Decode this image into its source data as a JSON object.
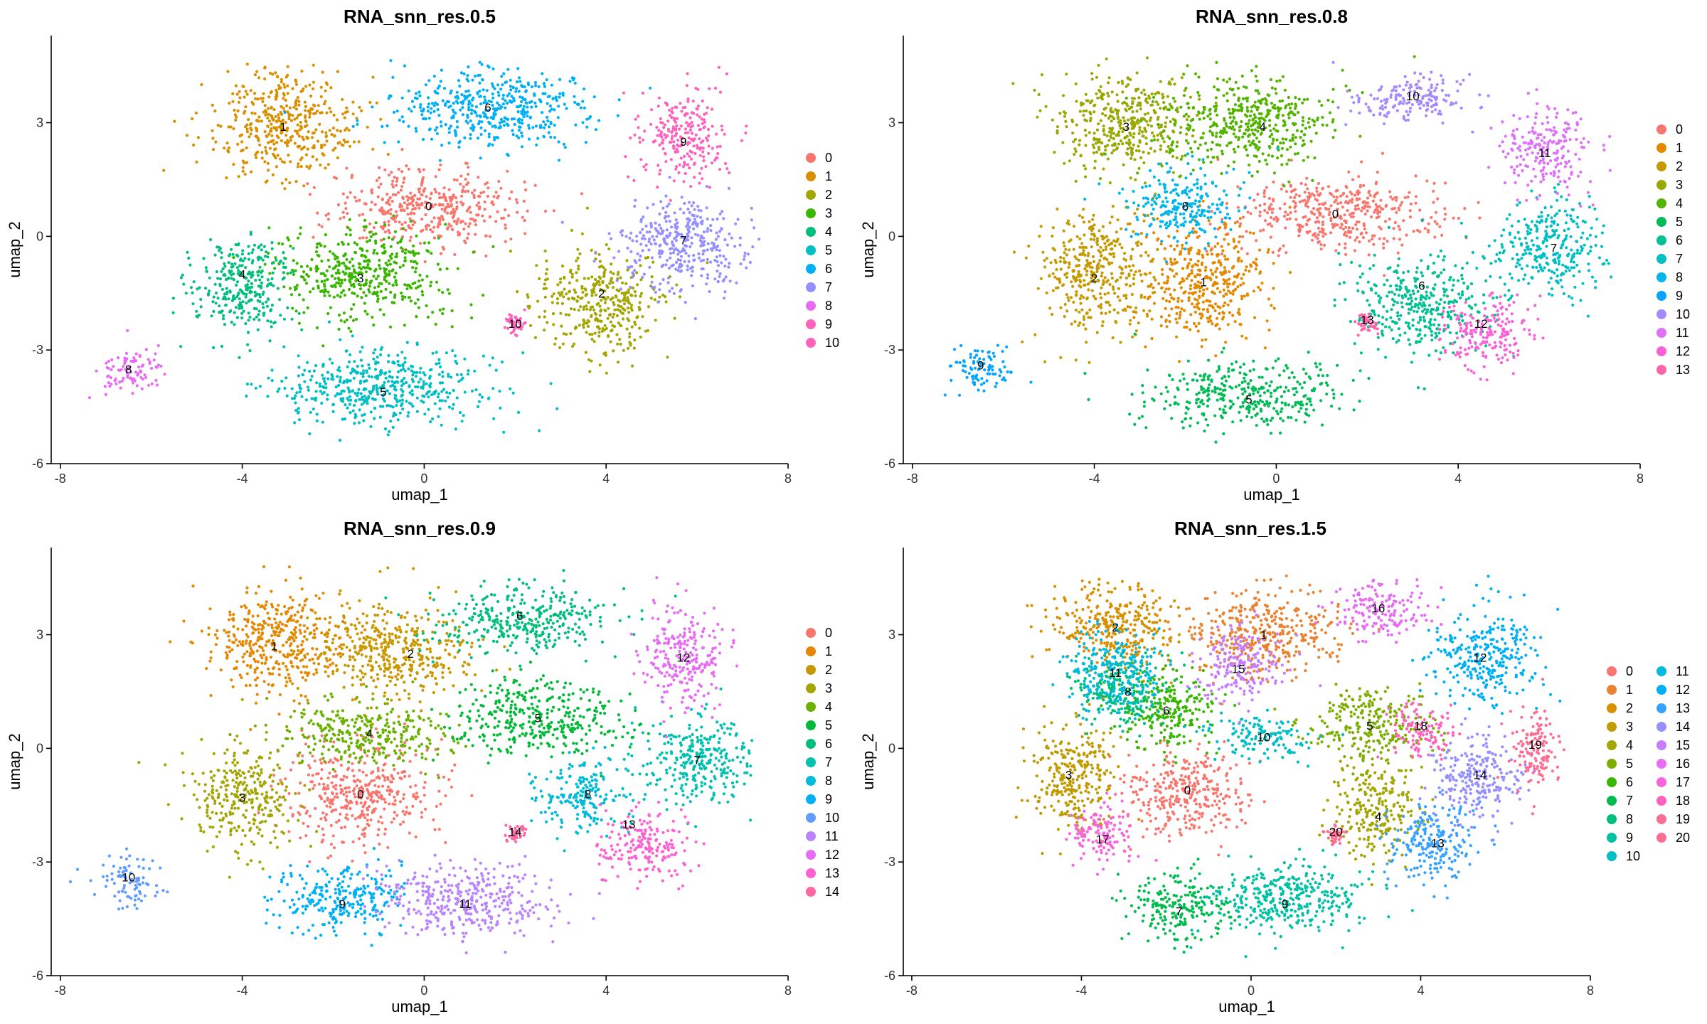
{
  "chart_data": [
    {
      "type": "scatter",
      "title": "RNA_snn_res.0.5",
      "xlabel": "umap_1",
      "ylabel": "umap_2",
      "xlim": [
        -8.2,
        8
      ],
      "ylim": [
        -6,
        5.3
      ],
      "xticks": [
        -8,
        -4,
        0,
        4,
        8
      ],
      "yticks": [
        -6,
        -3,
        0,
        3
      ],
      "legend_position": "right",
      "legend_columns": 1,
      "clusters": [
        {
          "name": "0",
          "color": "#F8766D",
          "center": [
            0.1,
            0.8
          ],
          "spread": [
            1.7,
            0.8
          ]
        },
        {
          "name": "1",
          "color": "#D89000",
          "center": [
            -3.1,
            3.0
          ],
          "spread": [
            1.3,
            1.1
          ]
        },
        {
          "name": "2",
          "color": "#A3A500",
          "center": [
            3.9,
            -1.8
          ],
          "spread": [
            1.1,
            1.1
          ]
        },
        {
          "name": "3",
          "color": "#39B600",
          "center": [
            -1.4,
            -1.0
          ],
          "spread": [
            1.5,
            1.0
          ]
        },
        {
          "name": "4",
          "color": "#00BF7D",
          "center": [
            -4.0,
            -1.3
          ],
          "spread": [
            0.9,
            1.1
          ]
        },
        {
          "name": "5",
          "color": "#00BFC4",
          "center": [
            -0.9,
            -4.0
          ],
          "spread": [
            2.0,
            0.8
          ]
        },
        {
          "name": "6",
          "color": "#00B0F6",
          "center": [
            1.5,
            3.4
          ],
          "spread": [
            1.9,
            0.8
          ]
        },
        {
          "name": "7",
          "color": "#9590FF",
          "center": [
            5.7,
            -0.2
          ],
          "spread": [
            1.2,
            1.0
          ]
        },
        {
          "name": "8",
          "color": "#E76BF3",
          "center": [
            -6.5,
            -3.6
          ],
          "spread": [
            0.6,
            0.5
          ]
        },
        {
          "name": "9",
          "color": "#FF62BC",
          "center": [
            5.7,
            2.6
          ],
          "spread": [
            0.8,
            1.0
          ]
        },
        {
          "name": "10",
          "color": "#FF62BC",
          "center": [
            2.0,
            -2.3
          ],
          "spread": [
            0.18,
            0.2
          ]
        }
      ],
      "labels": [
        {
          "text": "0",
          "x": 0.1,
          "y": 0.8
        },
        {
          "text": "1",
          "x": -3.1,
          "y": 2.9
        },
        {
          "text": "2",
          "x": 3.9,
          "y": -1.5
        },
        {
          "text": "3",
          "x": -1.4,
          "y": -1.1
        },
        {
          "text": "4",
          "x": -4.0,
          "y": -1.0
        },
        {
          "text": "5",
          "x": -0.9,
          "y": -4.1
        },
        {
          "text": "6",
          "x": 1.4,
          "y": 3.4
        },
        {
          "text": "7",
          "x": 5.7,
          "y": -0.1
        },
        {
          "text": "8",
          "x": -6.5,
          "y": -3.5
        },
        {
          "text": "9",
          "x": 5.7,
          "y": 2.5
        },
        {
          "text": "10",
          "x": 2.0,
          "y": -2.3
        }
      ]
    },
    {
      "type": "scatter",
      "title": "RNA_snn_res.0.8",
      "xlabel": "umap_1",
      "ylabel": "umap_2",
      "xlim": [
        -8.2,
        8
      ],
      "ylim": [
        -6,
        5.3
      ],
      "xticks": [
        -8,
        -4,
        0,
        4,
        8
      ],
      "yticks": [
        -6,
        -3,
        0,
        3
      ],
      "legend_position": "right",
      "legend_columns": 1,
      "clusters": [
        {
          "name": "0",
          "color": "#F8766D",
          "center": [
            1.3,
            0.6
          ],
          "spread": [
            1.8,
            0.8
          ]
        },
        {
          "name": "1",
          "color": "#E38900",
          "center": [
            -1.6,
            -1.2
          ],
          "spread": [
            1.1,
            1.2
          ]
        },
        {
          "name": "2",
          "color": "#C49A00",
          "center": [
            -4.0,
            -1.0
          ],
          "spread": [
            1.0,
            1.3
          ]
        },
        {
          "name": "3",
          "color": "#99A800",
          "center": [
            -3.3,
            3.0
          ],
          "spread": [
            1.2,
            1.1
          ]
        },
        {
          "name": "4",
          "color": "#53B400",
          "center": [
            -0.6,
            3.0
          ],
          "spread": [
            1.5,
            1.0
          ]
        },
        {
          "name": "5",
          "color": "#00BC56",
          "center": [
            -0.6,
            -4.2
          ],
          "spread": [
            1.7,
            0.7
          ]
        },
        {
          "name": "6",
          "color": "#00C094",
          "center": [
            3.2,
            -1.8
          ],
          "spread": [
            1.2,
            1.0
          ]
        },
        {
          "name": "7",
          "color": "#00BFC4",
          "center": [
            6.0,
            -0.3
          ],
          "spread": [
            1.0,
            1.0
          ]
        },
        {
          "name": "8",
          "color": "#00B6EB",
          "center": [
            -2.0,
            0.8
          ],
          "spread": [
            1.0,
            0.8
          ]
        },
        {
          "name": "9",
          "color": "#06A4FF",
          "center": [
            -6.5,
            -3.5
          ],
          "spread": [
            0.6,
            0.5
          ]
        },
        {
          "name": "10",
          "color": "#A58AFF",
          "center": [
            3.0,
            3.6
          ],
          "spread": [
            1.1,
            0.5
          ]
        },
        {
          "name": "11",
          "color": "#DF70F8",
          "center": [
            6.0,
            2.3
          ],
          "spread": [
            0.8,
            0.9
          ]
        },
        {
          "name": "12",
          "color": "#FB61D7",
          "center": [
            4.6,
            -2.6
          ],
          "spread": [
            0.8,
            0.8
          ]
        },
        {
          "name": "13",
          "color": "#FF66A8",
          "center": [
            2.0,
            -2.3
          ],
          "spread": [
            0.18,
            0.2
          ]
        }
      ],
      "labels": [
        {
          "text": "0",
          "x": 1.3,
          "y": 0.6
        },
        {
          "text": "1",
          "x": -1.6,
          "y": -1.2
        },
        {
          "text": "2",
          "x": -4.0,
          "y": -1.1
        },
        {
          "text": "3",
          "x": -3.3,
          "y": 2.9
        },
        {
          "text": "4",
          "x": -0.3,
          "y": 2.9
        },
        {
          "text": "5",
          "x": -0.6,
          "y": -4.3
        },
        {
          "text": "6",
          "x": 3.2,
          "y": -1.3
        },
        {
          "text": "7",
          "x": 6.1,
          "y": -0.3
        },
        {
          "text": "8",
          "x": -2.0,
          "y": 0.8
        },
        {
          "text": "9",
          "x": -6.5,
          "y": -3.4
        },
        {
          "text": "10",
          "x": 3.0,
          "y": 3.7
        },
        {
          "text": "11",
          "x": 5.9,
          "y": 2.2
        },
        {
          "text": "12",
          "x": 4.5,
          "y": -2.3
        },
        {
          "text": "13",
          "x": 2.0,
          "y": -2.2
        }
      ]
    },
    {
      "type": "scatter",
      "title": "RNA_snn_res.0.9",
      "xlabel": "umap_1",
      "ylabel": "umap_2",
      "xlim": [
        -8.2,
        8
      ],
      "ylim": [
        -6,
        5.3
      ],
      "xticks": [
        -8,
        -4,
        0,
        4,
        8
      ],
      "yticks": [
        -6,
        -3,
        0,
        3
      ],
      "legend_position": "right",
      "legend_columns": 1,
      "clusters": [
        {
          "name": "0",
          "color": "#F8766D",
          "center": [
            -1.4,
            -1.2
          ],
          "spread": [
            1.3,
            1.0
          ]
        },
        {
          "name": "1",
          "color": "#E58700",
          "center": [
            -3.3,
            2.8
          ],
          "spread": [
            1.2,
            1.1
          ]
        },
        {
          "name": "2",
          "color": "#C99800",
          "center": [
            -0.8,
            2.5
          ],
          "spread": [
            1.4,
            1.0
          ]
        },
        {
          "name": "3",
          "color": "#A3A500",
          "center": [
            -4.0,
            -1.3
          ],
          "spread": [
            0.9,
            1.1
          ]
        },
        {
          "name": "4",
          "color": "#6BB100",
          "center": [
            -1.2,
            0.4
          ],
          "spread": [
            1.5,
            0.7
          ]
        },
        {
          "name": "5",
          "color": "#00BA38",
          "center": [
            2.5,
            0.8
          ],
          "spread": [
            1.5,
            0.8
          ]
        },
        {
          "name": "6",
          "color": "#00BF7D",
          "center": [
            2.1,
            3.4
          ],
          "spread": [
            1.6,
            0.7
          ]
        },
        {
          "name": "7",
          "color": "#00C0AF",
          "center": [
            6.0,
            -0.3
          ],
          "spread": [
            1.0,
            1.0
          ]
        },
        {
          "name": "8",
          "color": "#00BCD8",
          "center": [
            3.5,
            -1.3
          ],
          "spread": [
            0.8,
            0.8
          ]
        },
        {
          "name": "9",
          "color": "#00B0F6",
          "center": [
            -1.8,
            -4.0
          ],
          "spread": [
            1.1,
            0.8
          ]
        },
        {
          "name": "10",
          "color": "#619CFF",
          "center": [
            -6.5,
            -3.5
          ],
          "spread": [
            0.6,
            0.5
          ]
        },
        {
          "name": "11",
          "color": "#B983FF",
          "center": [
            0.9,
            -4.0
          ],
          "spread": [
            1.5,
            0.8
          ]
        },
        {
          "name": "12",
          "color": "#E76BF3",
          "center": [
            5.7,
            2.4
          ],
          "spread": [
            0.8,
            1.0
          ]
        },
        {
          "name": "13",
          "color": "#FD61D1",
          "center": [
            4.8,
            -2.6
          ],
          "spread": [
            0.8,
            0.8
          ]
        },
        {
          "name": "14",
          "color": "#FF67A4",
          "center": [
            2.0,
            -2.3
          ],
          "spread": [
            0.18,
            0.2
          ]
        }
      ],
      "labels": [
        {
          "text": "0",
          "x": -1.4,
          "y": -1.2
        },
        {
          "text": "1",
          "x": -3.3,
          "y": 2.7
        },
        {
          "text": "2",
          "x": -0.3,
          "y": 2.5
        },
        {
          "text": "3",
          "x": -4.0,
          "y": -1.3
        },
        {
          "text": "4",
          "x": -1.2,
          "y": 0.4
        },
        {
          "text": "5",
          "x": 2.5,
          "y": 0.8
        },
        {
          "text": "6",
          "x": 2.1,
          "y": 3.5
        },
        {
          "text": "7",
          "x": 6.0,
          "y": -0.3
        },
        {
          "text": "8",
          "x": 3.6,
          "y": -1.2
        },
        {
          "text": "9",
          "x": -1.8,
          "y": -4.1
        },
        {
          "text": "10",
          "x": -6.5,
          "y": -3.4
        },
        {
          "text": "11",
          "x": 0.9,
          "y": -4.1
        },
        {
          "text": "12",
          "x": 5.7,
          "y": 2.4
        },
        {
          "text": "13",
          "x": 4.5,
          "y": -2.0
        },
        {
          "text": "14",
          "x": 2.0,
          "y": -2.2
        }
      ]
    },
    {
      "type": "scatter",
      "title": "RNA_snn_res.1.5",
      "xlabel": "umap_1",
      "ylabel": "umap_2",
      "xlim": [
        -8.2,
        8
      ],
      "ylim": [
        -6,
        5.3
      ],
      "xticks": [
        -8,
        -4,
        0,
        4,
        8
      ],
      "yticks": [
        -6,
        -3,
        0,
        3
      ],
      "legend_position": "right",
      "legend_columns": 2,
      "clusters": [
        {
          "name": "0",
          "color": "#F8766D",
          "center": [
            -1.5,
            -1.2
          ],
          "spread": [
            1.2,
            0.9
          ]
        },
        {
          "name": "1",
          "color": "#EA8331",
          "center": [
            0.4,
            3.0
          ],
          "spread": [
            1.4,
            0.9
          ]
        },
        {
          "name": "2",
          "color": "#D89000",
          "center": [
            -3.2,
            3.2
          ],
          "spread": [
            1.2,
            0.9
          ]
        },
        {
          "name": "3",
          "color": "#C09B00",
          "center": [
            -4.2,
            -0.8
          ],
          "spread": [
            0.8,
            1.2
          ]
        },
        {
          "name": "4",
          "color": "#A3A500",
          "center": [
            3.0,
            -1.6
          ],
          "spread": [
            0.8,
            1.0
          ]
        },
        {
          "name": "5",
          "color": "#7CAE00",
          "center": [
            2.8,
            0.6
          ],
          "spread": [
            1.1,
            0.8
          ]
        },
        {
          "name": "6",
          "color": "#39B600",
          "center": [
            -2.0,
            1.0
          ],
          "spread": [
            1.0,
            0.8
          ]
        },
        {
          "name": "7",
          "color": "#00BB4E",
          "center": [
            -1.7,
            -4.2
          ],
          "spread": [
            1.0,
            0.7
          ]
        },
        {
          "name": "8",
          "color": "#00BF7D",
          "center": [
            -3.0,
            1.5
          ],
          "spread": [
            0.9,
            0.8
          ]
        },
        {
          "name": "9",
          "color": "#00C1A3",
          "center": [
            0.8,
            -4.0
          ],
          "spread": [
            1.5,
            0.8
          ]
        },
        {
          "name": "10",
          "color": "#00BFC4",
          "center": [
            0.3,
            0.3
          ],
          "spread": [
            0.9,
            0.5
          ]
        },
        {
          "name": "11",
          "color": "#00BAE0",
          "center": [
            -3.2,
            2.0
          ],
          "spread": [
            0.9,
            0.9
          ]
        },
        {
          "name": "12",
          "color": "#00B0F6",
          "center": [
            5.5,
            2.5
          ],
          "spread": [
            1.0,
            1.0
          ]
        },
        {
          "name": "13",
          "color": "#35A2FF",
          "center": [
            4.3,
            -2.5
          ],
          "spread": [
            0.9,
            0.8
          ]
        },
        {
          "name": "14",
          "color": "#9590FF",
          "center": [
            5.3,
            -0.8
          ],
          "spread": [
            0.9,
            0.9
          ]
        },
        {
          "name": "15",
          "color": "#C77CFF",
          "center": [
            -0.3,
            2.2
          ],
          "spread": [
            0.8,
            0.8
          ]
        },
        {
          "name": "16",
          "color": "#E76BF3",
          "center": [
            3.0,
            3.6
          ],
          "spread": [
            0.9,
            0.6
          ]
        },
        {
          "name": "17",
          "color": "#FA62DB",
          "center": [
            -3.5,
            -2.3
          ],
          "spread": [
            0.7,
            0.6
          ]
        },
        {
          "name": "18",
          "color": "#FF62BC",
          "center": [
            4.0,
            0.5
          ],
          "spread": [
            0.6,
            0.6
          ]
        },
        {
          "name": "19",
          "color": "#FF6C91",
          "center": [
            6.7,
            0.0
          ],
          "spread": [
            0.5,
            0.9
          ]
        },
        {
          "name": "20",
          "color": "#FF6C91",
          "center": [
            2.0,
            -2.3
          ],
          "spread": [
            0.18,
            0.2
          ]
        }
      ],
      "labels": [
        {
          "text": "0",
          "x": -1.5,
          "y": -1.1
        },
        {
          "text": "1",
          "x": 0.3,
          "y": 3.0
        },
        {
          "text": "2",
          "x": -3.2,
          "y": 3.2
        },
        {
          "text": "3",
          "x": -4.3,
          "y": -0.7
        },
        {
          "text": "4",
          "x": 3.0,
          "y": -1.8
        },
        {
          "text": "5",
          "x": 2.8,
          "y": 0.6
        },
        {
          "text": "6",
          "x": -2.0,
          "y": 1.0
        },
        {
          "text": "7",
          "x": -1.7,
          "y": -4.3
        },
        {
          "text": "8",
          "x": -2.9,
          "y": 1.5
        },
        {
          "text": "9",
          "x": 0.8,
          "y": -4.1
        },
        {
          "text": "10",
          "x": 0.3,
          "y": 0.3
        },
        {
          "text": "11",
          "x": -3.2,
          "y": 2.0
        },
        {
          "text": "12",
          "x": 5.4,
          "y": 2.4
        },
        {
          "text": "13",
          "x": 4.4,
          "y": -2.5
        },
        {
          "text": "14",
          "x": 5.4,
          "y": -0.7
        },
        {
          "text": "15",
          "x": -0.3,
          "y": 2.1
        },
        {
          "text": "16",
          "x": 3.0,
          "y": 3.7
        },
        {
          "text": "17",
          "x": -3.5,
          "y": -2.4
        },
        {
          "text": "18",
          "x": 4.0,
          "y": 0.6
        },
        {
          "text": "19",
          "x": 6.7,
          "y": 0.1
        },
        {
          "text": "20",
          "x": 2.0,
          "y": -2.2
        }
      ]
    }
  ]
}
